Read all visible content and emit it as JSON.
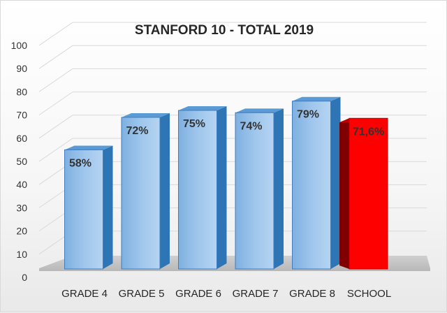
{
  "chart_data": {
    "type": "bar",
    "title": "STANFORD 10 - TOTAL 2019",
    "categories": [
      "GRADE 4",
      "GRADE 5",
      "GRADE 6",
      "GRADE 7",
      "GRADE 8",
      "SCHOOL"
    ],
    "values": [
      58,
      72,
      75,
      74,
      79,
      71.6
    ],
    "data_labels": [
      "58%",
      "72%",
      "75%",
      "74%",
      "79%",
      "71,6%"
    ],
    "y_ticks": [
      "0",
      "10",
      "20",
      "30",
      "40",
      "50",
      "60",
      "70",
      "80",
      "90",
      "100"
    ],
    "ylim": [
      0,
      100
    ],
    "grid": true,
    "style": "3d-column",
    "colors": {
      "bar": "#9dc3e6",
      "bar_edge": "#2e75b6",
      "highlight": "#ff0000",
      "highlight_edge": "#7f0000"
    },
    "highlight_category": "SCHOOL"
  }
}
